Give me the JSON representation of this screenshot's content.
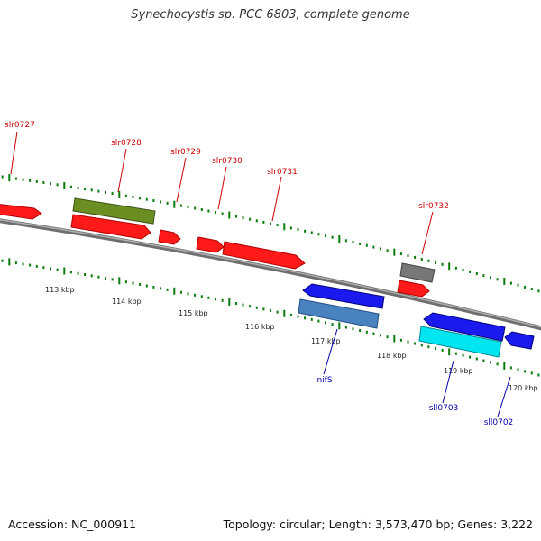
{
  "title": "Synechocystis sp. PCC 6803, complete genome",
  "footer": {
    "accession": "Accession: NC_000911",
    "topology": "Topology: circular; Length: 3,573,470 bp; Genes: 3,222"
  },
  "colors": {
    "backbone": "#8a8a8a",
    "tick_dot": "#0a7a0a",
    "forward_label": "#cc0000",
    "reverse_label": "#0000aa",
    "gene_red": "#ff1a1a",
    "gene_olive": "#6b8e23",
    "gene_gray": "#777777",
    "gene_blue": "#1a1aee",
    "gene_steel": "#4a82c0",
    "gene_cyan": "#00e5f0"
  },
  "scale_ticks": [
    "113 kbp",
    "114 kbp",
    "115 kbp",
    "116 kbp",
    "117 kbp",
    "118 kbp",
    "119 kbp",
    "120 kbp"
  ],
  "gene_labels": {
    "forward": [
      "slr0727",
      "slr0728",
      "slr0729",
      "slr0730",
      "slr0731",
      "slr0732"
    ],
    "reverse": [
      "nifS",
      "sll0703",
      "sll0702"
    ]
  }
}
